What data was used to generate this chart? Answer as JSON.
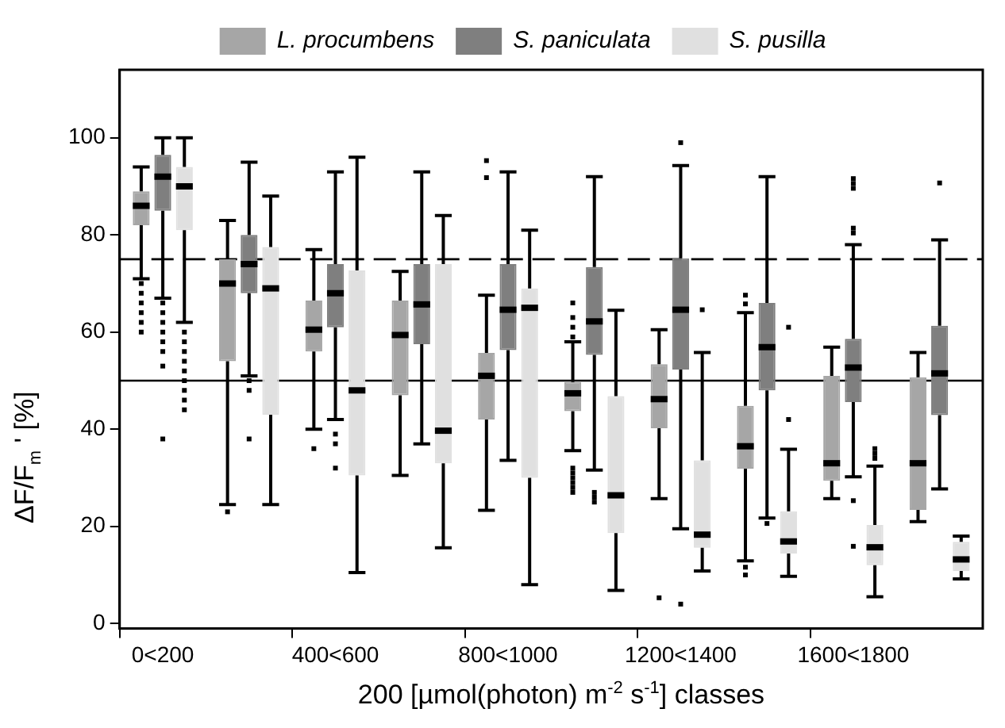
{
  "chart_data": {
    "type": "box",
    "xlabel": "200 [µmol(photon) m$^{-2}$ s$^{-1}$] classes",
    "ylabel": "ΔF/F$_{m}$ ' [%]",
    "categories": [
      "0<200",
      null,
      "400<600",
      null,
      "800<1000",
      null,
      "1200<1400",
      null,
      "1600<1800",
      null
    ],
    "ylim": [
      -1,
      114
    ],
    "yticks": [
      0,
      20,
      40,
      60,
      80,
      100
    ],
    "grid": false,
    "legend": "top",
    "ref_lines": [
      {
        "axis": "y",
        "value": 75,
        "line_style": "dashed",
        "color": "#000000"
      },
      {
        "axis": "y",
        "value": 50,
        "line_style": "solid",
        "color": "#000000"
      }
    ],
    "series": [
      {
        "name": "L. procumbens",
        "color": "#a6a6a6",
        "boxes": [
          {
            "low": 71,
            "q1": 82,
            "median": 86,
            "q3": 89,
            "high": 94,
            "outliers": [
              70,
              68,
              66,
              64,
              62,
              60
            ]
          },
          {
            "low": 24.5,
            "q1": 54,
            "median": 70,
            "q3": 75,
            "high": 83,
            "outliers": [
              23
            ]
          },
          {
            "low": 40,
            "q1": 56,
            "median": 60.5,
            "q3": 66.5,
            "high": 77,
            "outliers": [
              36
            ]
          },
          {
            "low": 30.5,
            "q1": 47,
            "median": 59.4,
            "q3": 66.5,
            "high": 72.5
          },
          {
            "low": 23.3,
            "q1": 42,
            "median": 51,
            "q3": 55.7,
            "high": 67.6,
            "outliers": [
              95.3,
              91.8
            ]
          },
          {
            "low": 35.6,
            "q1": 43.7,
            "median": 47.4,
            "q3": 49.7,
            "high": 58,
            "outliers": [
              66,
              63,
              61,
              59,
              32,
              31,
              30,
              29,
              28,
              27
            ]
          },
          {
            "low": 25.7,
            "q1": 40.2,
            "median": 46.2,
            "q3": 53.4,
            "high": 60.5,
            "outliers": [
              5.3
            ]
          },
          {
            "low": 12.9,
            "q1": 31.9,
            "median": 36.5,
            "q3": 44.8,
            "high": 64,
            "outliers": [
              67.6,
              65.8,
              11.6,
              10
            ]
          },
          {
            "low": 25.7,
            "q1": 29.4,
            "median": 33,
            "q3": 51,
            "high": 56.9
          },
          {
            "low": 21,
            "q1": 23.4,
            "median": 33,
            "q3": 50.7,
            "high": 55.8
          }
        ]
      },
      {
        "name": "S. paniculata",
        "color": "#7f7f7f",
        "boxes": [
          {
            "low": 67,
            "q1": 85,
            "median": 92,
            "q3": 96.5,
            "high": 100,
            "outliers": [
              66,
              64,
              62,
              60,
              58,
              56,
              53,
              38
            ]
          },
          {
            "low": 51,
            "q1": 68,
            "median": 74,
            "q3": 80,
            "high": 95,
            "outliers": [
              50,
              48,
              38
            ]
          },
          {
            "low": 42,
            "q1": 61,
            "median": 68,
            "q3": 74,
            "high": 93,
            "outliers": [
              39,
              37,
              32
            ]
          },
          {
            "low": 37,
            "q1": 57.5,
            "median": 65.7,
            "q3": 74,
            "high": 93
          },
          {
            "low": 33.6,
            "q1": 56.3,
            "median": 64.6,
            "q3": 74,
            "high": 93
          },
          {
            "low": 31.6,
            "q1": 55.3,
            "median": 62.2,
            "q3": 73.4,
            "high": 92,
            "outliers": [
              27,
              26,
              25
            ]
          },
          {
            "low": 19.5,
            "q1": 52.3,
            "median": 64.6,
            "q3": 75.2,
            "high": 94.3,
            "outliers": [
              99,
              4
            ]
          },
          {
            "low": 21.7,
            "q1": 48,
            "median": 56.9,
            "q3": 66,
            "high": 92,
            "outliers": [
              20.6
            ]
          },
          {
            "low": 30.2,
            "q1": 45.6,
            "median": 52.7,
            "q3": 58.6,
            "high": 78,
            "outliers": [
              91.6,
              90.6,
              89.6,
              81.4,
              80.4,
              25.3,
              15.9
            ]
          },
          {
            "low": 27.7,
            "q1": 42.9,
            "median": 51.5,
            "q3": 61.3,
            "high": 79,
            "outliers": [
              90.7
            ]
          }
        ]
      },
      {
        "name": "S. pusilla",
        "color": "#e0e0e0",
        "boxes": [
          {
            "low": 62,
            "q1": 81,
            "median": 90,
            "q3": 94,
            "high": 100,
            "outliers": [
              60,
              58,
              56,
              54,
              52,
              50,
              48,
              46,
              44
            ]
          },
          {
            "low": 24.5,
            "q1": 43,
            "median": 69,
            "q3": 77.5,
            "high": 88
          },
          {
            "low": 10.5,
            "q1": 30.5,
            "median": 48,
            "q3": 72.7,
            "high": 96
          },
          {
            "low": 15.6,
            "q1": 33,
            "median": 39.7,
            "q3": 74,
            "high": 84
          },
          {
            "low": 8,
            "q1": 30,
            "median": 65,
            "q3": 69,
            "high": 81
          },
          {
            "low": 6.8,
            "q1": 18.6,
            "median": 26.4,
            "q3": 46.8,
            "high": 64.5
          },
          {
            "low": 10.8,
            "q1": 15.6,
            "median": 18.3,
            "q3": 33.6,
            "high": 55.8,
            "outliers": [
              64.6
            ]
          },
          {
            "low": 9.7,
            "q1": 14.4,
            "median": 16.9,
            "q3": 23.1,
            "high": 35.9,
            "outliers": [
              61,
              42
            ]
          },
          {
            "low": 5.5,
            "q1": 12,
            "median": 15.7,
            "q3": 20.3,
            "high": 32.4,
            "outliers": [
              36,
              35,
              34
            ]
          },
          {
            "low": 9.2,
            "q1": 10.8,
            "median": 13.2,
            "q3": 16.8,
            "high": 18
          }
        ]
      }
    ]
  }
}
